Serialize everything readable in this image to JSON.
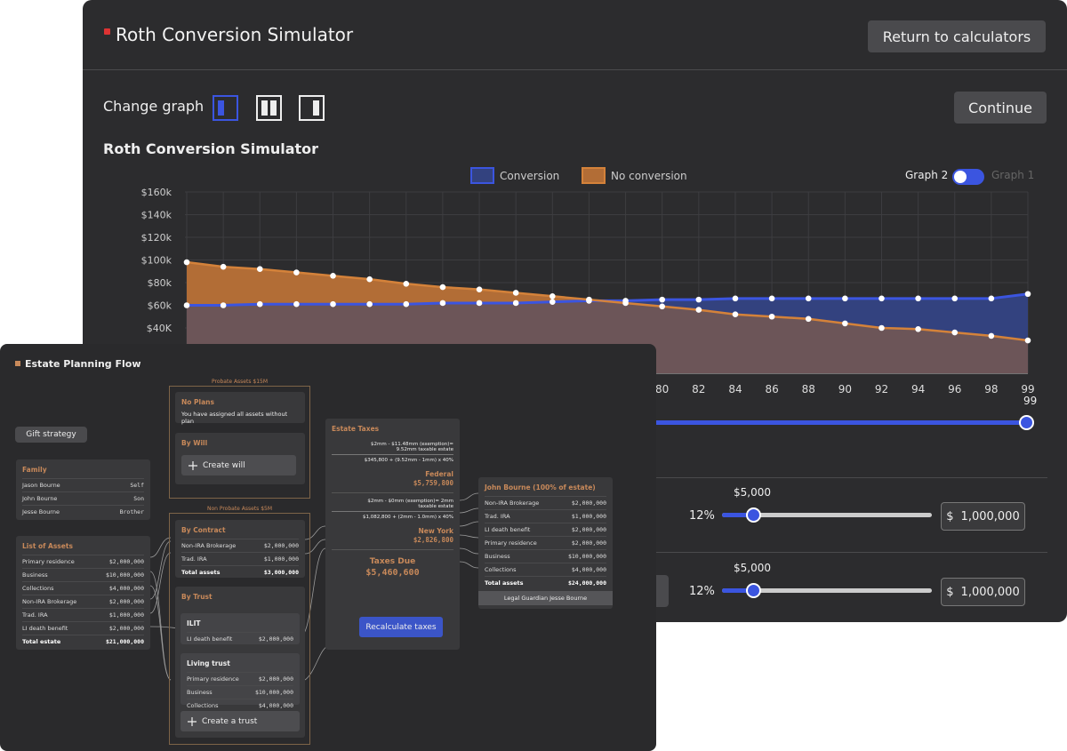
{
  "roth": {
    "header": {
      "title": "Roth Conversion Simulator",
      "return_button": "Return to calculators"
    },
    "change_graph": "Change graph",
    "continue_button": "Continue",
    "toggle": {
      "active": "Graph 2",
      "inactive": "Graph 1"
    },
    "chart_data": {
      "type": "line",
      "title": "Roth Conversion Simulator",
      "categories": [
        null,
        null,
        null,
        null,
        null,
        null,
        null,
        null,
        null,
        null,
        null,
        null,
        null,
        80,
        82,
        84,
        86,
        88,
        90,
        92,
        94,
        96,
        98,
        99
      ],
      "series": [
        {
          "name": "Conversion",
          "color": "#3b55e0",
          "values": [
            60,
            60,
            61,
            61,
            61,
            61,
            61,
            62,
            62,
            62,
            63,
            64,
            64,
            65,
            65,
            66,
            66,
            66,
            66,
            66,
            66,
            66,
            66,
            70
          ]
        },
        {
          "name": "No conversion",
          "color": "#d4823a",
          "values": [
            98,
            94,
            92,
            89,
            86,
            83,
            79,
            76,
            74,
            71,
            68,
            65,
            62,
            59,
            56,
            52,
            50,
            48,
            44,
            40,
            39,
            36,
            33,
            29
          ]
        }
      ],
      "ylim": [
        0,
        160
      ],
      "yticks": [
        {
          "value": 40,
          "label": "$40K"
        },
        {
          "value": 60,
          "label": "$60k"
        },
        {
          "value": 80,
          "label": "$80k"
        },
        {
          "value": 100,
          "label": "$100k"
        },
        {
          "value": 120,
          "label": "$120k"
        },
        {
          "value": 140,
          "label": "$140k"
        },
        {
          "value": 160,
          "label": "$160k"
        }
      ],
      "grid": true
    },
    "age_slider": {
      "value": "99"
    },
    "rows": [
      {
        "amount": "$5,000",
        "rate": "12%",
        "currency": "$",
        "total": "1,000,000"
      },
      {
        "amount": "$5,000",
        "rate": "12%",
        "currency": "$",
        "total": "1,000,000"
      }
    ]
  },
  "estate": {
    "title": "Estate Planning Flow",
    "gift_button": "Gift strategy",
    "family": {
      "heading": "Family",
      "rows": [
        [
          "Jason Bourne",
          "Self"
        ],
        [
          "John Bourne",
          "Son"
        ],
        [
          "Jesse Bourne",
          "Brother"
        ]
      ]
    },
    "assets": {
      "heading": "List of Assets",
      "rows": [
        [
          "Primary residence",
          "$2,000,000"
        ],
        [
          "Business",
          "$10,000,000"
        ],
        [
          "Collections",
          "$4,000,000"
        ],
        [
          "Non-IRA Brokerage",
          "$2,000,000"
        ],
        [
          "Trad. IRA",
          "$1,000,000"
        ],
        [
          "LI death benefit",
          "$2,000,000"
        ]
      ],
      "total": [
        "Total estate",
        "$21,000,000"
      ]
    },
    "probate": {
      "label": "Probate Assets $15M",
      "no_plans": {
        "heading": "No Plans",
        "text": "You have assigned all assets without plan"
      },
      "by_will": {
        "heading": "By Will",
        "button": "Create will"
      }
    },
    "non_probate": {
      "label": "Non Probate Assets $5M",
      "by_contract": {
        "heading": "By Contract",
        "rows": [
          [
            "Non-IRA Brokerage",
            "$2,000,000"
          ],
          [
            "Trad. IRA",
            "$1,000,000"
          ]
        ],
        "total": [
          "Total assets",
          "$3,000,000"
        ]
      },
      "by_trust": {
        "heading": "By Trust",
        "ilit": {
          "heading": "ILIT",
          "rows": [
            [
              "LI death benefit",
              "$2,000,000"
            ]
          ]
        },
        "living_trust": {
          "heading": "Living trust",
          "rows": [
            [
              "Primary residence",
              "$2,000,000"
            ],
            [
              "Business",
              "$10,000,000"
            ],
            [
              "Collections",
              "$4,000,000"
            ]
          ]
        },
        "button": "Create a trust"
      }
    },
    "taxes": {
      "heading": "Estate Taxes",
      "federal": {
        "formula_1": "$2mm - $11.48mm (exemption)= 9.52mm taxable estate",
        "formula_2": "$345,800 + (9.52mm - 1mm) x 40%",
        "label": "Federal",
        "amount": "$5,759,800"
      },
      "new_york": {
        "formula_1": "$2mm - $0mm (exemption)= 2mm taxable estate",
        "formula_2": "$1,082,800 + (2mm - 1.0mm) x 40%",
        "label": "New York",
        "amount": "$2,826,800"
      },
      "due_label": "Taxes Due",
      "due_amount": "$5,460,600",
      "button": "Recalculate taxes"
    },
    "heir": {
      "heading": "John Bourne (100% of estate)",
      "rows": [
        [
          "Non-IRA Brokerage",
          "$2,000,000"
        ],
        [
          "Trad. IRA",
          "$1,000,000"
        ],
        [
          "LI death benefit",
          "$2,000,000"
        ],
        [
          "Primary residence",
          "$2,000,000"
        ],
        [
          "Business",
          "$10,000,000"
        ],
        [
          "Collections",
          "$4,000,000"
        ]
      ],
      "total": [
        "Total assets",
        "$24,000,000"
      ],
      "footer": "Legal Guardian Jesse Bourne"
    }
  }
}
